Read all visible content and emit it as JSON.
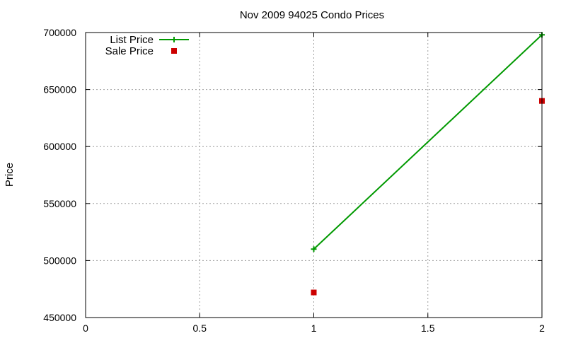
{
  "chart_data": {
    "type": "line",
    "title": "Nov 2009 94025 Condo Prices",
    "xlabel": "",
    "ylabel": "Price",
    "xlim": [
      0,
      2
    ],
    "ylim": [
      450000,
      700000
    ],
    "x_ticks": [
      0,
      0.5,
      1,
      1.5,
      2
    ],
    "x_tick_labels": [
      "0",
      "0.5",
      "1",
      "1.5",
      "2"
    ],
    "y_ticks": [
      450000,
      500000,
      550000,
      600000,
      650000,
      700000
    ],
    "y_tick_labels": [
      "450000",
      "500000",
      "550000",
      "600000",
      "650000",
      "700000"
    ],
    "grid": true,
    "legend_position": "top-left",
    "series": [
      {
        "name": "List Price",
        "style": "linespoints",
        "marker": "plus",
        "color": "#009900",
        "x": [
          1,
          2
        ],
        "y": [
          510000,
          698000
        ]
      },
      {
        "name": "Sale Price",
        "style": "points",
        "marker": "square",
        "color": "#cc0000",
        "x": [
          1,
          2
        ],
        "y": [
          472000,
          640000
        ]
      }
    ]
  }
}
